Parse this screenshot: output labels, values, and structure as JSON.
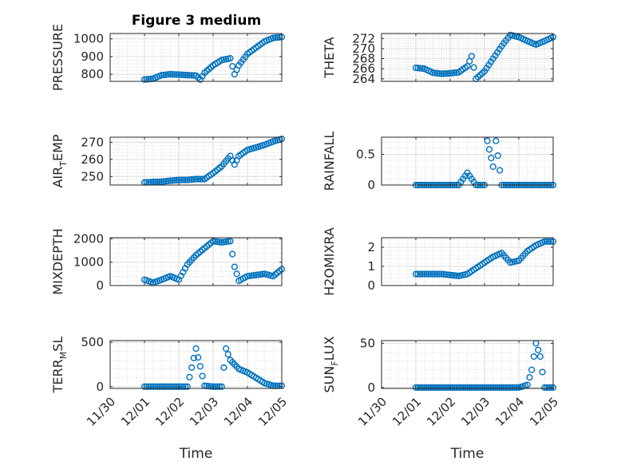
{
  "figure_title": "Figure 3 medium",
  "colors": {
    "marker": "#0072BD",
    "axis": "#262626",
    "grid": "#dcdcdc",
    "minor_grid": "#c8c8c8"
  },
  "chart_data": [
    {
      "type": "scatter",
      "title": "Figure 3 medium",
      "ylabel": "PRESSURE",
      "xlabel": "",
      "ylim": [
        760,
        1030
      ],
      "yticks": [
        800,
        900,
        1000
      ],
      "grid": true,
      "show_xticklabels": false,
      "x": [
        "12/01 00:00",
        "12/01 06:00",
        "12/01 12:00",
        "12/01 18:00",
        "12/02 00:00",
        "12/02 06:00",
        "12/02 12:00",
        "12/02 15:00",
        "12/02 18:00",
        "12/03 00:00",
        "12/03 06:00",
        "12/03 12:00",
        "12/03 15:00",
        "12/03 18:00",
        "12/04 00:00",
        "12/04 06:00",
        "12/04 12:00",
        "12/04 18:00",
        "12/05 00:00"
      ],
      "y": [
        770,
        775,
        795,
        800,
        798,
        795,
        793,
        770,
        808,
        850,
        880,
        890,
        800,
        850,
        915,
        950,
        985,
        1005,
        1010
      ]
    },
    {
      "type": "scatter",
      "title": "",
      "ylabel": "THETA",
      "xlabel": "",
      "ylim": [
        263.5,
        273
      ],
      "yticks": [
        264,
        266,
        268,
        270,
        272
      ],
      "grid": true,
      "show_xticklabels": false,
      "x": [
        "12/01 00:00",
        "12/01 06:00",
        "12/01 12:00",
        "12/01 18:00",
        "12/02 00:00",
        "12/02 06:00",
        "12/02 12:00",
        "12/02 15:00",
        "12/02 18:00",
        "12/03 00:00",
        "12/03 06:00",
        "12/03 12:00",
        "12/03 18:00",
        "12/04 00:00",
        "12/04 06:00",
        "12/04 12:00",
        "12/04 18:00",
        "12/05 00:00"
      ],
      "y": [
        266.2,
        266.0,
        265.2,
        265.0,
        265.1,
        265.3,
        266.5,
        268.5,
        264.0,
        265.5,
        268.0,
        270.5,
        272.7,
        272.3,
        271.5,
        270.8,
        271.5,
        272.3
      ]
    },
    {
      "type": "scatter",
      "title": "",
      "ylabel": "AIR_TEMP",
      "ylabel_main": "AIR",
      "ylabel_sub": "T",
      "ylabel_rest": "EMP",
      "xlabel": "",
      "ylim": [
        245,
        273
      ],
      "yticks": [
        250,
        260,
        270
      ],
      "grid": true,
      "show_xticklabels": false,
      "x": [
        "12/01 00:00",
        "12/01 06:00",
        "12/01 12:00",
        "12/01 18:00",
        "12/02 00:00",
        "12/02 06:00",
        "12/02 12:00",
        "12/02 18:00",
        "12/03 00:00",
        "12/03 06:00",
        "12/03 12:00",
        "12/03 15:00",
        "12/03 18:00",
        "12/04 00:00",
        "12/04 06:00",
        "12/04 12:00",
        "12/04 18:00",
        "12/05 00:00"
      ],
      "y": [
        246.5,
        246.8,
        247.0,
        247.5,
        248.0,
        248.0,
        248.5,
        248.5,
        252.0,
        256.0,
        262.0,
        257.0,
        262.0,
        265.5,
        267.0,
        268.5,
        270.5,
        272.0
      ]
    },
    {
      "type": "scatter",
      "title": "",
      "ylabel": "RAINFALL",
      "xlabel": "",
      "ylim": [
        0,
        0.78
      ],
      "yticks": [
        0,
        0.5
      ],
      "grid": true,
      "show_xticklabels": false,
      "x": [
        "12/01 00:00",
        "12/01 12:00",
        "12/02 00:00",
        "12/02 06:00",
        "12/02 12:00",
        "12/02 18:00",
        "12/03 00:00",
        "12/03 02:00",
        "12/03 06:00",
        "12/03 08:00",
        "12/03 12:00",
        "12/04 00:00",
        "12/04 12:00",
        "12/05 00:00"
      ],
      "y": [
        0,
        0,
        0,
        0,
        0.2,
        0,
        0,
        0.72,
        0.3,
        0.72,
        0,
        0,
        0,
        0
      ]
    },
    {
      "type": "scatter",
      "title": "",
      "ylabel": "MIXDEPTH",
      "xlabel": "",
      "ylim": [
        0,
        2050
      ],
      "yticks": [
        0,
        1000,
        2000
      ],
      "grid": true,
      "show_xticklabels": false,
      "x": [
        "12/01 00:00",
        "12/01 06:00",
        "12/01 12:00",
        "12/01 18:00",
        "12/02 00:00",
        "12/02 06:00",
        "12/02 12:00",
        "12/02 18:00",
        "12/03 00:00",
        "12/03 06:00",
        "12/03 12:00",
        "12/03 15:00",
        "12/03 18:00",
        "12/04 00:00",
        "12/04 06:00",
        "12/04 12:00",
        "12/04 18:00",
        "12/05 00:00"
      ],
      "y": [
        250,
        120,
        250,
        400,
        250,
        900,
        1300,
        1600,
        1900,
        1850,
        1900,
        800,
        200,
        400,
        450,
        500,
        400,
        700
      ]
    },
    {
      "type": "scatter",
      "title": "",
      "ylabel": "H2OMIXRA",
      "xlabel": "",
      "ylim": [
        0,
        2.5
      ],
      "yticks": [
        0,
        1,
        2
      ],
      "grid": true,
      "show_xticklabels": false,
      "x": [
        "12/01 00:00",
        "12/01 06:00",
        "12/01 12:00",
        "12/01 18:00",
        "12/02 00:00",
        "12/02 06:00",
        "12/02 12:00",
        "12/02 18:00",
        "12/03 00:00",
        "12/03 06:00",
        "12/03 12:00",
        "12/03 18:00",
        "12/04 00:00",
        "12/04 06:00",
        "12/04 12:00",
        "12/04 18:00",
        "12/05 00:00"
      ],
      "y": [
        0.6,
        0.6,
        0.6,
        0.6,
        0.55,
        0.5,
        0.6,
        0.9,
        1.2,
        1.5,
        1.7,
        1.2,
        1.3,
        1.8,
        2.1,
        2.3,
        2.3
      ]
    },
    {
      "type": "scatter",
      "title": "",
      "ylabel": "TERR_MSL",
      "ylabel_main": "TERR",
      "ylabel_sub": "M",
      "ylabel_rest": "SL",
      "xlabel": "Time",
      "ylim": [
        -20,
        520
      ],
      "yticks": [
        0,
        500
      ],
      "grid": true,
      "show_xticklabels": true,
      "xticklabels": [
        "11/30",
        "12/01",
        "12/02",
        "12/03",
        "12/04",
        "12/05"
      ],
      "x": [
        "12/01 00:00",
        "12/01 12:00",
        "12/02 00:00",
        "12/02 06:00",
        "12/02 12:00",
        "12/02 15:00",
        "12/02 18:00",
        "12/03 00:00",
        "12/03 06:00",
        "12/03 09:00",
        "12/03 12:00",
        "12/03 18:00",
        "12/04 00:00",
        "12/04 06:00",
        "12/04 12:00",
        "12/04 18:00",
        "12/05 00:00"
      ],
      "y": [
        0,
        0,
        0,
        0,
        430,
        230,
        10,
        0,
        0,
        430,
        300,
        200,
        160,
        100,
        40,
        10,
        10
      ]
    },
    {
      "type": "scatter",
      "title": "",
      "ylabel": "SUN_FLUX",
      "ylabel_main": "SUN",
      "ylabel_sub": "F",
      "ylabel_rest": "LUX",
      "xlabel": "Time",
      "ylim": [
        -1,
        53
      ],
      "yticks": [
        0,
        50
      ],
      "grid": true,
      "show_xticklabels": true,
      "xticklabels": [
        "11/30",
        "12/01",
        "12/02",
        "12/03",
        "12/04",
        "12/05"
      ],
      "x": [
        "12/01 00:00",
        "12/01 12:00",
        "12/02 00:00",
        "12/02 12:00",
        "12/03 00:00",
        "12/03 12:00",
        "12/04 00:00",
        "12/04 06:00",
        "12/04 09:00",
        "12/04 12:00",
        "12/04 15:00",
        "12/04 18:00",
        "12/05 00:00"
      ],
      "y": [
        0,
        0,
        0,
        0,
        0,
        0,
        0,
        3,
        20,
        50,
        35,
        0,
        0
      ]
    }
  ]
}
